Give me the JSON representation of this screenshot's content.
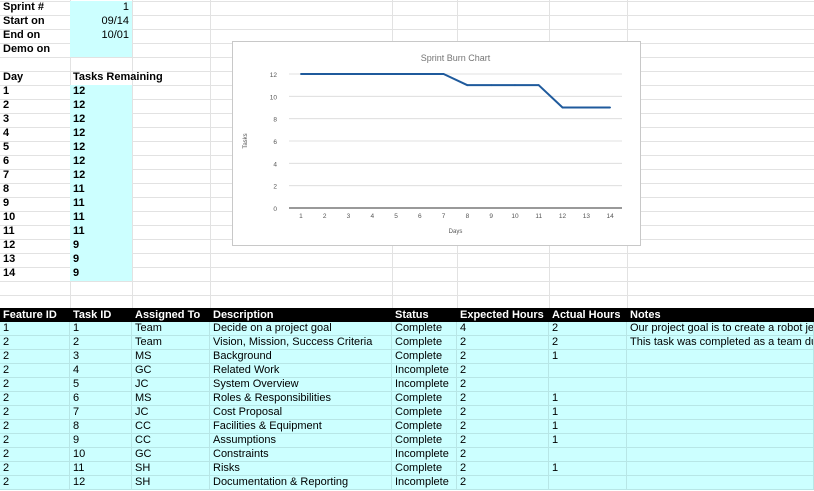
{
  "sheet": {
    "sprint_label": "Sprint #",
    "sprint_value": "1",
    "start_label": "Start on",
    "start_value": "09/14",
    "end_label": "End on",
    "end_value": "10/01",
    "demo_label": "Demo on",
    "demo_value": "",
    "day_header": "Day",
    "tasks_header": "Tasks Remaining",
    "days": [
      "1",
      "2",
      "3",
      "4",
      "5",
      "6",
      "7",
      "8",
      "9",
      "10",
      "11",
      "12",
      "13",
      "14"
    ],
    "remaining": [
      "12",
      "12",
      "12",
      "12",
      "12",
      "12",
      "12",
      "11",
      "11",
      "11",
      "11",
      "9",
      "9",
      "9"
    ]
  },
  "table": {
    "headers": [
      "Feature ID",
      "Task ID",
      "Assigned To",
      "Description",
      "Status",
      "Expected Hours",
      "Actual Hours",
      "Notes"
    ],
    "rows": [
      [
        "1",
        "1",
        "Team",
        "Decide on a project goal",
        "Complete",
        "4",
        "2",
        "Our project goal is to create a robot jer"
      ],
      [
        "2",
        "2",
        "Team",
        "Vision, Mission, Success Criteria",
        "Complete",
        "2",
        "2",
        "This task was completed as a team du"
      ],
      [
        "2",
        "3",
        "MS",
        "Background",
        "Complete",
        "2",
        "1",
        ""
      ],
      [
        "2",
        "4",
        "GC",
        "Related Work",
        "Incomplete",
        "2",
        "",
        ""
      ],
      [
        "2",
        "5",
        "JC",
        "System Overview",
        "Incomplete",
        "2",
        "",
        ""
      ],
      [
        "2",
        "6",
        "MS",
        "Roles & Responsibilities",
        "Complete",
        "2",
        "1",
        ""
      ],
      [
        "2",
        "7",
        "JC",
        "Cost Proposal",
        "Complete",
        "2",
        "1",
        ""
      ],
      [
        "2",
        "8",
        "CC",
        "Facilities & Equipment",
        "Complete",
        "2",
        "1",
        ""
      ],
      [
        "2",
        "9",
        "CC",
        "Assumptions",
        "Complete",
        "2",
        "1",
        ""
      ],
      [
        "2",
        "10",
        "GC",
        "Constraints",
        "Incomplete",
        "2",
        "",
        ""
      ],
      [
        "2",
        "11",
        "SH",
        "Risks",
        "Complete",
        "2",
        "1",
        ""
      ],
      [
        "2",
        "12",
        "SH",
        "Documentation & Reporting",
        "Incomplete",
        "2",
        "",
        ""
      ]
    ]
  },
  "chart_data": {
    "type": "line",
    "title": "Sprint Burn Chart",
    "xlabel": "Days",
    "ylabel": "Tasks",
    "x": [
      1,
      2,
      3,
      4,
      5,
      6,
      7,
      8,
      9,
      10,
      11,
      12,
      13,
      14
    ],
    "series": [
      {
        "values": [
          12,
          12,
          12,
          12,
          12,
          12,
          12,
          11,
          11,
          11,
          11,
          9,
          9,
          9
        ]
      }
    ],
    "ylim": [
      0,
      12
    ],
    "yticks": [
      0,
      2,
      4,
      6,
      8,
      10,
      12
    ],
    "line_color": "#1f5a9c",
    "grid": true
  }
}
